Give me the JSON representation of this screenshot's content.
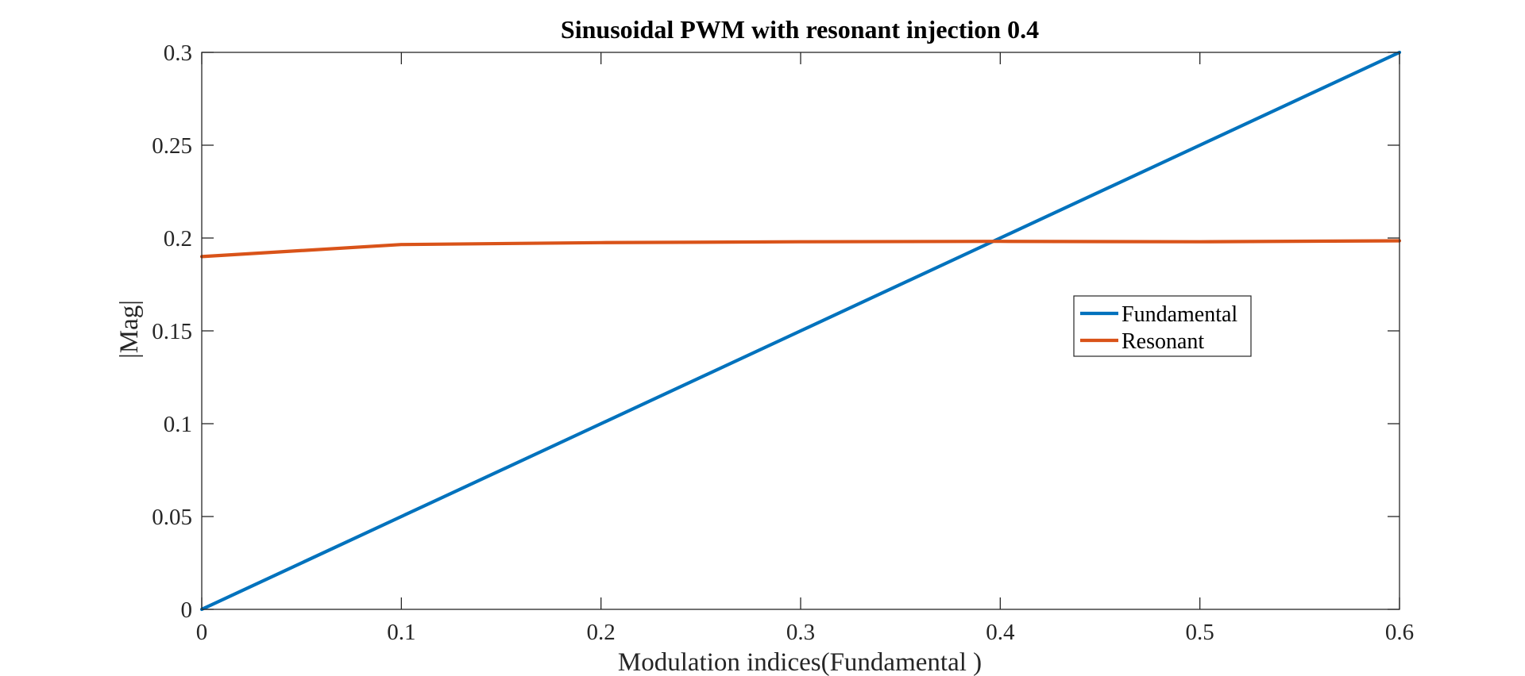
{
  "chart_data": {
    "type": "line",
    "title": "Sinusoidal PWM with resonant injection 0.4",
    "xlabel": "Modulation indices(Fundamental )",
    "ylabel": "|Mag|",
    "xlim": [
      0,
      0.6
    ],
    "ylim": [
      0,
      0.3
    ],
    "xticks": [
      "0",
      "0.1",
      "0.2",
      "0.3",
      "0.4",
      "0.5",
      "0.6"
    ],
    "yticks": [
      "0",
      "0.05",
      "0.1",
      "0.15",
      "0.2",
      "0.25",
      "0.3"
    ],
    "grid": false,
    "legend_position": "right",
    "x": [
      0,
      0.1,
      0.2,
      0.3,
      0.4,
      0.5,
      0.6
    ],
    "series": [
      {
        "name": "Fundamental",
        "color": "#0072BD",
        "values": [
          0,
          0.05,
          0.1,
          0.15,
          0.2,
          0.25,
          0.3
        ]
      },
      {
        "name": "Resonant",
        "color": "#D95319",
        "values": [
          0.19,
          0.1965,
          0.1975,
          0.198,
          0.1982,
          0.198,
          0.1985
        ]
      }
    ]
  }
}
